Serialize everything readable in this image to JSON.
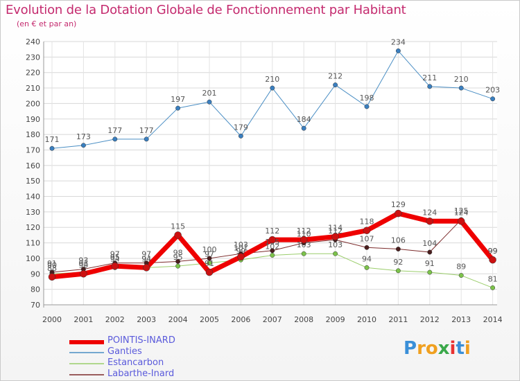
{
  "title": "Evolution de la Dotation Globale de Fonctionnement par Habitant",
  "subtitle": "(en € et par an)",
  "brand": {
    "letters": [
      "P",
      "r",
      "o",
      "x",
      "i",
      "t",
      "i"
    ],
    "colors": [
      "#3a8fd8",
      "#f0a020",
      "#f0a020",
      "#3aa84a",
      "#e83232",
      "#3a8fd8",
      "#f0a020"
    ]
  },
  "chart_data": {
    "type": "line",
    "title": "Evolution de la Dotation Globale de Fonctionnement par Habitant",
    "ylabel": "(en € et par an)",
    "xlabel": "",
    "x": [
      "2000",
      "2001",
      "2002",
      "2003",
      "2004",
      "2005",
      "2006",
      "2007",
      "2008",
      "2009",
      "2010",
      "2011",
      "2012",
      "2013",
      "2014"
    ],
    "ylim": [
      70,
      240
    ],
    "yticks": [
      70,
      80,
      90,
      100,
      110,
      120,
      130,
      140,
      150,
      160,
      170,
      180,
      190,
      200,
      210,
      220,
      230,
      240
    ],
    "grid": true,
    "series": [
      {
        "name": "Ganties",
        "color": "#4a8ec4",
        "marker": "#3a7fc0",
        "width": 1,
        "values": [
          171,
          173,
          177,
          177,
          197,
          201,
          179,
          210,
          184,
          212,
          198,
          234,
          211,
          210,
          203
        ],
        "labels": [
          "171",
          "173",
          "177",
          "177",
          "197",
          "201",
          "179",
          "210",
          "184",
          "212",
          "198",
          "234",
          "211",
          "210",
          "203"
        ]
      },
      {
        "name": "Estancarbon",
        "color": "#9acd6a",
        "marker": "#7cc34a",
        "width": 1,
        "values": [
          90,
          91,
          94,
          94,
          95,
          97,
          99,
          102,
          103,
          103,
          94,
          92,
          91,
          89,
          81
        ],
        "labels": [
          "90",
          "91",
          "94",
          "94",
          "95",
          "97",
          "99",
          "102",
          "103",
          "103",
          "94",
          "92",
          "91",
          "89",
          "81"
        ]
      },
      {
        "name": "Labarthe-Inard",
        "color": "#7b2a2a",
        "marker": "#4a1e1e",
        "width": 1,
        "values": [
          91,
          93,
          97,
          97,
          98,
          100,
          103,
          105,
          110,
          112,
          107,
          106,
          104,
          125,
          99
        ],
        "labels": [
          "91",
          "93",
          "97",
          "97",
          "98",
          "100",
          "103",
          "105",
          "110",
          "112",
          "107",
          "106",
          "104",
          "125",
          "99"
        ]
      },
      {
        "name": "POINTIS-INARD",
        "color": "#ee0000",
        "marker": "#cc1111",
        "width": 7,
        "values": [
          88,
          90,
          95,
          94,
          115,
          91,
          101,
          112,
          112,
          114,
          118,
          129,
          124,
          124,
          99
        ],
        "labels": [
          "88",
          "90",
          "95",
          "94",
          "115",
          "91",
          "101",
          "112",
          "112",
          "114",
          "118",
          "129",
          "124",
          "124",
          "99"
        ]
      }
    ],
    "legend": [
      "POINTIS-INARD",
      "Ganties",
      "Estancarbon",
      "Labarthe-Inard"
    ]
  }
}
